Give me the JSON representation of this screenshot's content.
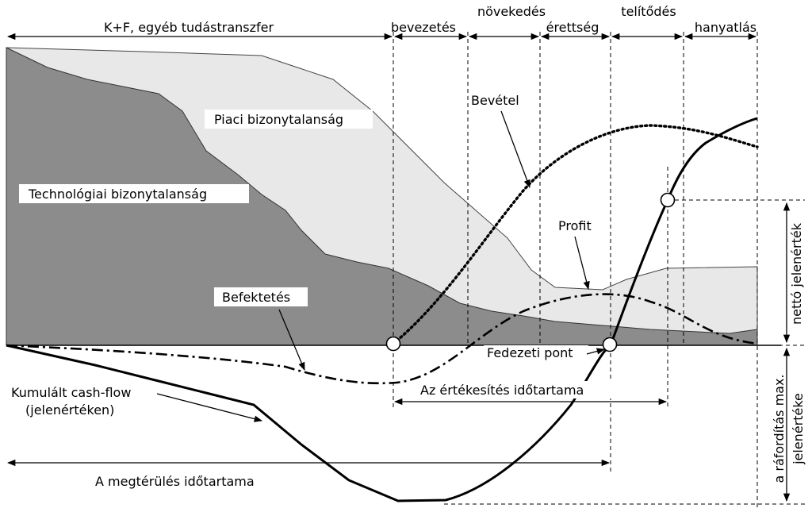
{
  "phases": {
    "rnd": "K+F, egyéb tudástranszfer",
    "introduction": "bevezetés",
    "growth": "növekedés",
    "maturity": "érettség",
    "saturation": "telítődés",
    "decline": "hanyatlás"
  },
  "areas": {
    "market_uncertainty": "Piaci bizonytalanság",
    "technology_uncertainty": "Technológiai bizonytalanság"
  },
  "curves": {
    "revenue": "Bevétel",
    "profit": "Profit",
    "investment": "Befektetés",
    "cumulative_cash_flow_line1": "Kumulált cash-flow",
    "cumulative_cash_flow_line2": "(jelenértéken)"
  },
  "points": {
    "break_even": "Fedezeti pont"
  },
  "durations": {
    "sales_period": "Az értékesítés időtartama",
    "payback_period": "A megtérülés időtartama"
  },
  "vertical_labels": {
    "net_present_value": "nettó jelenérték",
    "max_spend_line1": "a ráfordítás max.",
    "max_spend_line2": "jelenértéke"
  },
  "colors": {
    "market_area": "#e8e8e8",
    "technology_area": "#8c8c8c",
    "lines": "#000000"
  }
}
